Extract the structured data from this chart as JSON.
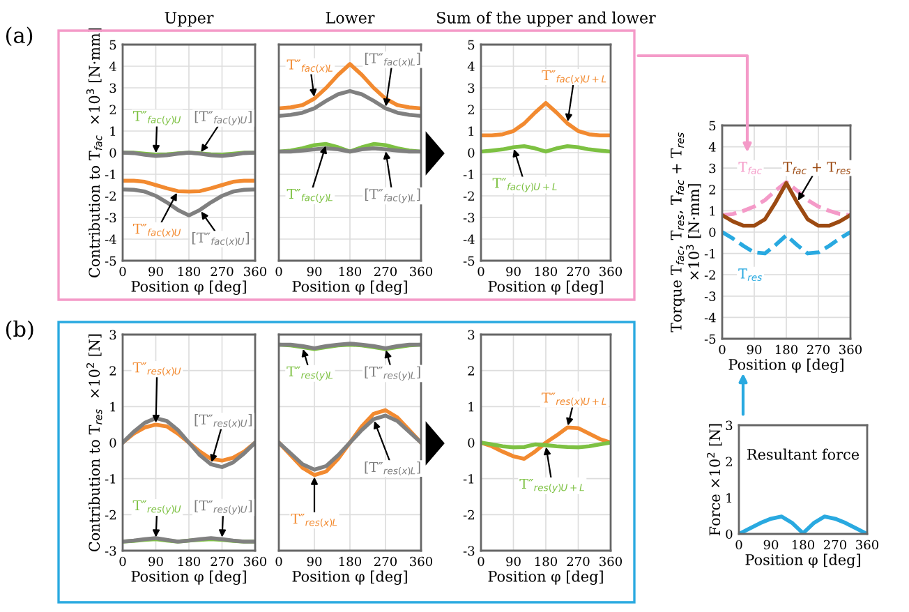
{
  "chart_data": [
    {
      "type": "line",
      "title": "Upper",
      "ylabel": "Contribution to T$_{fac}$  ×10$^{3}$ [N·mm]",
      "xlabel": "Position φ [deg]",
      "annotations": [
        "(a)"
      ],
      "xlim": [
        0,
        360
      ],
      "xticks": [
        0,
        90,
        180,
        270,
        360
      ],
      "ylim": [
        -5,
        5
      ],
      "yticks": [
        -5,
        -4,
        -3,
        -2,
        -1,
        0,
        1,
        2,
        3,
        4,
        5
      ],
      "grid": true,
      "legend": false,
      "x": [
        0,
        30,
        60,
        90,
        120,
        150,
        180,
        210,
        240,
        270,
        300,
        330,
        360
      ],
      "series": [
        {
          "name": "T″$_{fac(x)U}$",
          "color": "#f28a30",
          "values": [
            -1.3,
            -1.3,
            -1.35,
            -1.5,
            -1.65,
            -1.78,
            -1.8,
            -1.78,
            -1.65,
            -1.5,
            -1.35,
            -1.3,
            -1.3
          ]
        },
        {
          "name": "[T″$_{fac(x)U}$]",
          "color": "#808080",
          "values": [
            -1.7,
            -1.72,
            -1.8,
            -2.0,
            -2.3,
            -2.65,
            -2.9,
            -2.65,
            -2.3,
            -2.0,
            -1.8,
            -1.72,
            -1.7
          ]
        },
        {
          "name": "T″$_{fac(y)U}$",
          "color": "#7dc142",
          "values": [
            0,
            0,
            -0.05,
            -0.1,
            -0.08,
            -0.03,
            0,
            -0.03,
            -0.08,
            -0.1,
            -0.05,
            0,
            0
          ]
        },
        {
          "name": "[T″$_{fac(y)U}$]",
          "color": "#808080",
          "values": [
            0,
            -0.02,
            -0.1,
            -0.15,
            -0.12,
            -0.05,
            0,
            -0.05,
            -0.12,
            -0.15,
            -0.1,
            -0.02,
            0
          ]
        }
      ]
    },
    {
      "type": "line",
      "title": "Lower",
      "xlabel": "Position φ [deg]",
      "xlim": [
        0,
        360
      ],
      "xticks": [
        0,
        90,
        180,
        270,
        360
      ],
      "ylim": [
        -5,
        5
      ],
      "yticks": [
        -5,
        -4,
        -3,
        -2,
        -1,
        0,
        1,
        2,
        3,
        4,
        5
      ],
      "tick_labels": "x",
      "grid": true,
      "legend": false,
      "x": [
        0,
        30,
        60,
        90,
        120,
        150,
        180,
        210,
        240,
        270,
        300,
        330,
        360
      ],
      "series": [
        {
          "name": "T″$_{fac(x)L}$",
          "color": "#f28a30",
          "values": [
            2.05,
            2.1,
            2.2,
            2.5,
            3.0,
            3.6,
            4.1,
            3.6,
            3.0,
            2.5,
            2.2,
            2.1,
            2.05
          ]
        },
        {
          "name": "[T″$_{fac(x)L}$]",
          "color": "#808080",
          "values": [
            1.7,
            1.75,
            1.85,
            2.05,
            2.4,
            2.7,
            2.85,
            2.7,
            2.4,
            2.05,
            1.85,
            1.75,
            1.7
          ]
        },
        {
          "name": "T″$_{fac(y)L}$",
          "color": "#7dc142",
          "values": [
            0.05,
            0.1,
            0.2,
            0.35,
            0.4,
            0.25,
            0.05,
            0.25,
            0.4,
            0.35,
            0.2,
            0.1,
            0.05
          ]
        },
        {
          "name": "[T″$_{fac(y)L}$]",
          "color": "#808080",
          "values": [
            0.05,
            0.05,
            0.1,
            0.15,
            0.2,
            0.15,
            0.05,
            0.15,
            0.2,
            0.15,
            0.1,
            0.05,
            0.05
          ]
        }
      ]
    },
    {
      "type": "line",
      "title": "Sum of the upper and lower",
      "xlabel": "Position φ [deg]",
      "xlim": [
        0,
        360
      ],
      "xticks": [
        0,
        90,
        180,
        270,
        360
      ],
      "ylim": [
        -5,
        5
      ],
      "yticks": [
        -5,
        -4,
        -3,
        -2,
        -1,
        0,
        1,
        2,
        3,
        4,
        5
      ],
      "grid": true,
      "legend": false,
      "x": [
        0,
        30,
        60,
        90,
        120,
        150,
        180,
        210,
        240,
        270,
        300,
        330,
        360
      ],
      "series": [
        {
          "name": "T″$_{fac(x)U+L}$",
          "color": "#f28a30",
          "values": [
            0.8,
            0.8,
            0.85,
            1.0,
            1.35,
            1.85,
            2.3,
            1.85,
            1.35,
            1.0,
            0.85,
            0.8,
            0.8
          ]
        },
        {
          "name": "T″$_{fac(y)U+L}$",
          "color": "#7dc142",
          "values": [
            0.05,
            0.1,
            0.15,
            0.25,
            0.3,
            0.2,
            0.05,
            0.2,
            0.3,
            0.25,
            0.15,
            0.1,
            0.05
          ]
        }
      ]
    },
    {
      "type": "line",
      "ylabel": "Torque T$_{fac}$, T$_{res}$, T$_{fac}$ + T$_{res}$\n×10$^{3}$ [N·mm]",
      "xlabel": "Position φ [deg]",
      "xlim": [
        0,
        360
      ],
      "xticks": [
        0,
        90,
        180,
        270,
        360
      ],
      "ylim": [
        -5,
        5
      ],
      "yticks": [
        -5,
        -4,
        -3,
        -2,
        -1,
        0,
        1,
        2,
        3,
        4,
        5
      ],
      "grid": true,
      "legend": false,
      "x": [
        0,
        30,
        60,
        90,
        120,
        150,
        180,
        210,
        240,
        270,
        300,
        330,
        360
      ],
      "series": [
        {
          "name": "T$_{fac}$",
          "color": "#f49ac8",
          "line_style": "dashed",
          "values": [
            0.8,
            0.85,
            1.0,
            1.2,
            1.5,
            1.95,
            2.35,
            1.95,
            1.5,
            1.2,
            1.0,
            0.85,
            0.8
          ]
        },
        {
          "name": "T$_{fac}$ + T$_{res}$",
          "color": "#9c4a12",
          "line_style": "solid",
          "values": [
            0.8,
            0.5,
            0.3,
            0.3,
            0.6,
            1.4,
            2.3,
            1.4,
            0.6,
            0.3,
            0.3,
            0.5,
            0.8
          ]
        },
        {
          "name": "T$_{res}$",
          "color": "#29a9e0",
          "line_style": "dashed",
          "values": [
            0,
            -0.3,
            -0.65,
            -0.95,
            -1.0,
            -0.6,
            -0.15,
            -0.6,
            -1.0,
            -0.95,
            -0.65,
            -0.3,
            0
          ]
        }
      ]
    },
    {
      "type": "line",
      "ylabel": "Contribution to T$_{res}$  ×10$^{2}$ [N]",
      "xlabel": "Position φ [deg]",
      "annotations": [
        "(b)"
      ],
      "xlim": [
        0,
        360
      ],
      "xticks": [
        0,
        90,
        180,
        270,
        360
      ],
      "ylim": [
        -3,
        3
      ],
      "yticks": [
        -3,
        -2,
        -1,
        0,
        1,
        2,
        3
      ],
      "grid": true,
      "legend": false,
      "x": [
        0,
        30,
        60,
        90,
        120,
        150,
        180,
        210,
        240,
        270,
        300,
        330,
        360
      ],
      "series": [
        {
          "name": "T″$_{res(x)U}$",
          "color": "#f28a30",
          "values": [
            0,
            0.25,
            0.42,
            0.5,
            0.45,
            0.25,
            0,
            -0.25,
            -0.45,
            -0.5,
            -0.42,
            -0.25,
            0
          ]
        },
        {
          "name": "[T″$_{res(x)U}$]",
          "color": "#808080",
          "values": [
            0,
            0.3,
            0.55,
            0.68,
            0.6,
            0.35,
            0,
            -0.35,
            -0.6,
            -0.68,
            -0.55,
            -0.3,
            0
          ]
        },
        {
          "name": "T″$_{res(y)U}$",
          "color": "#7dc142",
          "values": [
            -2.75,
            -2.73,
            -2.7,
            -2.68,
            -2.72,
            -2.75,
            -2.72,
            -2.7,
            -2.68,
            -2.7,
            -2.73,
            -2.75,
            -2.75
          ]
        },
        {
          "name": "[T″$_{res(y)U}$]",
          "color": "#808080",
          "values": [
            -2.75,
            -2.72,
            -2.68,
            -2.65,
            -2.7,
            -2.75,
            -2.72,
            -2.68,
            -2.65,
            -2.68,
            -2.72,
            -2.75,
            -2.75
          ]
        }
      ]
    },
    {
      "type": "line",
      "xlabel": "Position φ [deg]",
      "xlim": [
        0,
        360
      ],
      "xticks": [
        0,
        90,
        180,
        270,
        360
      ],
      "ylim": [
        -3,
        3
      ],
      "yticks": [
        -3,
        -2,
        -1,
        0,
        1,
        2,
        3
      ],
      "tick_labels": "x",
      "grid": true,
      "legend": false,
      "x": [
        0,
        30,
        60,
        90,
        120,
        150,
        180,
        210,
        240,
        270,
        300,
        330,
        360
      ],
      "series": [
        {
          "name": "T″$_{res(x)L}$",
          "color": "#f28a30",
          "values": [
            0,
            -0.35,
            -0.7,
            -0.9,
            -0.8,
            -0.45,
            0,
            0.45,
            0.8,
            0.9,
            0.7,
            0.35,
            0
          ]
        },
        {
          "name": "[T″$_{res(x)L}$]",
          "color": "#808080",
          "values": [
            0,
            -0.3,
            -0.6,
            -0.75,
            -0.65,
            -0.35,
            0,
            0.35,
            0.65,
            0.75,
            0.6,
            0.3,
            0
          ]
        },
        {
          "name": "T″$_{res(y)L}$",
          "color": "#7dc142",
          "values": [
            2.72,
            2.7,
            2.65,
            2.6,
            2.65,
            2.7,
            2.72,
            2.7,
            2.65,
            2.6,
            2.65,
            2.7,
            2.72
          ]
        },
        {
          "name": "[T″$_{res(y)L}$]",
          "color": "#808080",
          "values": [
            2.72,
            2.72,
            2.68,
            2.62,
            2.68,
            2.72,
            2.75,
            2.72,
            2.68,
            2.62,
            2.68,
            2.72,
            2.72
          ]
        }
      ]
    },
    {
      "type": "line",
      "xlabel": "Position φ [deg]",
      "xlim": [
        0,
        360
      ],
      "xticks": [
        0,
        90,
        180,
        270,
        360
      ],
      "ylim": [
        -3,
        3
      ],
      "yticks": [
        -3,
        -2,
        -1,
        0,
        1,
        2,
        3
      ],
      "grid": true,
      "legend": false,
      "x": [
        0,
        30,
        60,
        90,
        120,
        150,
        180,
        210,
        240,
        270,
        300,
        330,
        360
      ],
      "series": [
        {
          "name": "T″$_{res(x)U+L}$",
          "color": "#f28a30",
          "values": [
            0,
            -0.1,
            -0.25,
            -0.38,
            -0.45,
            -0.25,
            0,
            0.2,
            0.42,
            0.4,
            0.25,
            0.1,
            0
          ]
        },
        {
          "name": "T″$_{res(y)U+L}$",
          "color": "#7dc142",
          "values": [
            0,
            -0.05,
            -0.1,
            -0.13,
            -0.12,
            -0.05,
            -0.07,
            -0.1,
            -0.12,
            -0.13,
            -0.1,
            -0.05,
            0
          ]
        }
      ]
    },
    {
      "type": "line",
      "title": "Resultant force",
      "ylabel": "Force ×10$^{2}$ [N]",
      "xlabel": "Position φ [deg]",
      "xlim": [
        0,
        360
      ],
      "xticks": [
        0,
        90,
        180,
        270,
        360
      ],
      "ylim": [
        0,
        3
      ],
      "yticks": [
        0,
        1,
        2,
        3
      ],
      "grid": false,
      "legend": false,
      "x": [
        0,
        30,
        60,
        90,
        120,
        150,
        180,
        210,
        240,
        270,
        300,
        330,
        360
      ],
      "series": [
        {
          "color": "#29a9e0",
          "values": [
            0,
            0.15,
            0.3,
            0.42,
            0.48,
            0.3,
            0.02,
            0.3,
            0.48,
            0.42,
            0.3,
            0.15,
            0
          ]
        }
      ]
    }
  ]
}
